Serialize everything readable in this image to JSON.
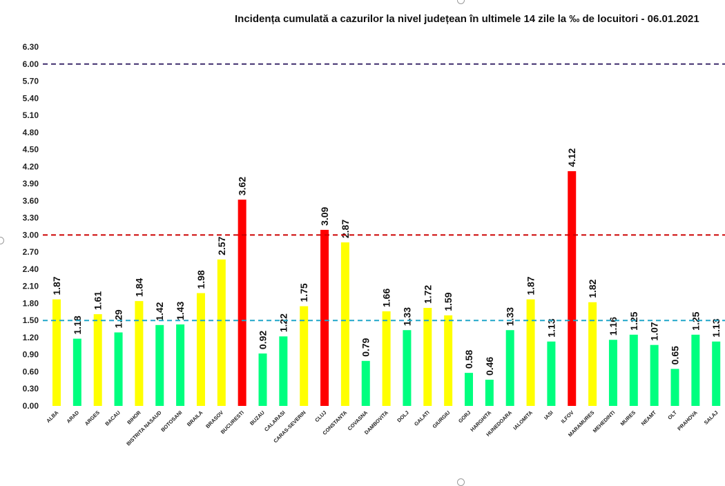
{
  "chart_data": {
    "type": "bar",
    "title": "Incidența cumulată a cazurilor la nivel județean în ultimele 14 zile la ‰ de locuitori - 06.01.2021",
    "xlabel": "",
    "ylabel": "",
    "ylim": [
      0,
      6.3
    ],
    "yticks": [
      "0.00",
      "0.30",
      "0.60",
      "0.90",
      "1.20",
      "1.50",
      "1.80",
      "2.10",
      "2.40",
      "2.70",
      "3.00",
      "3.30",
      "3.60",
      "3.90",
      "4.20",
      "4.50",
      "4.80",
      "5.10",
      "5.40",
      "5.70",
      "6.00",
      "6.30"
    ],
    "grid": false,
    "categories": [
      "ALBA",
      "ARAD",
      "ARGES",
      "BACAU",
      "BIHOR",
      "BISTRITA NASAUD",
      "BOTOSANI",
      "BRAILA",
      "BRASOV",
      "BUCURESTI",
      "BUZAU",
      "CALARASI",
      "CARAS-SEVERIN",
      "CLUJ",
      "CONSTANTA",
      "COVASNA",
      "DAMBOVITA",
      "DOLJ",
      "GALATI",
      "GIURGIU",
      "GORJ",
      "HARGHITA",
      "HUNEDOARA",
      "IALOMITA",
      "IASI",
      "ILFOV",
      "MARAMURES",
      "MEHEDINTI",
      "MURES",
      "NEAMT",
      "OLT",
      "PRAHOVA",
      "SALAJ"
    ],
    "values": [
      1.87,
      1.18,
      1.61,
      1.29,
      1.84,
      1.42,
      1.43,
      1.98,
      2.57,
      3.62,
      0.92,
      1.22,
      1.75,
      3.09,
      2.87,
      0.79,
      1.66,
      1.33,
      1.72,
      1.59,
      0.58,
      0.46,
      1.33,
      1.87,
      1.13,
      4.12,
      1.82,
      1.16,
      1.25,
      1.07,
      0.65,
      1.25,
      1.13
    ],
    "value_labels": [
      "1.87",
      "1.18",
      "1.61",
      "1.29",
      "1.84",
      "1.42",
      "1.43",
      "1.98",
      "2.57",
      "3.62",
      "0.92",
      "1.22",
      "1.75",
      "3.09",
      "2.87",
      "0.79",
      "1.66",
      "1.33",
      "1.72",
      "1.59",
      "0.58",
      "0.46",
      "1.33",
      "1.87",
      "1.13",
      "4.12",
      "1.82",
      "1.16",
      "1.25",
      "1.07",
      "0.65",
      "1.25",
      "1.13"
    ],
    "bar_colors": [
      "#FFFF00",
      "#00FF7F",
      "#FFFF00",
      "#00FF7F",
      "#FFFF00",
      "#00FF7F",
      "#00FF7F",
      "#FFFF00",
      "#FFFF00",
      "#FF0000",
      "#00FF7F",
      "#00FF7F",
      "#FFFF00",
      "#FF0000",
      "#FFFF00",
      "#00FF7F",
      "#FFFF00",
      "#00FF7F",
      "#FFFF00",
      "#FFFF00",
      "#00FF7F",
      "#00FF7F",
      "#00FF7F",
      "#FFFF00",
      "#00FF7F",
      "#FF0000",
      "#FFFF00",
      "#00FF7F",
      "#00FF7F",
      "#00FF7F",
      "#00FF7F",
      "#00FF7F",
      "#00FF7F"
    ],
    "reference_lines": [
      {
        "value": 6.0,
        "color": "#3D2B6B"
      },
      {
        "value": 3.0,
        "color": "#CC0000"
      },
      {
        "value": 1.5,
        "color": "#1FA5C9"
      }
    ]
  }
}
